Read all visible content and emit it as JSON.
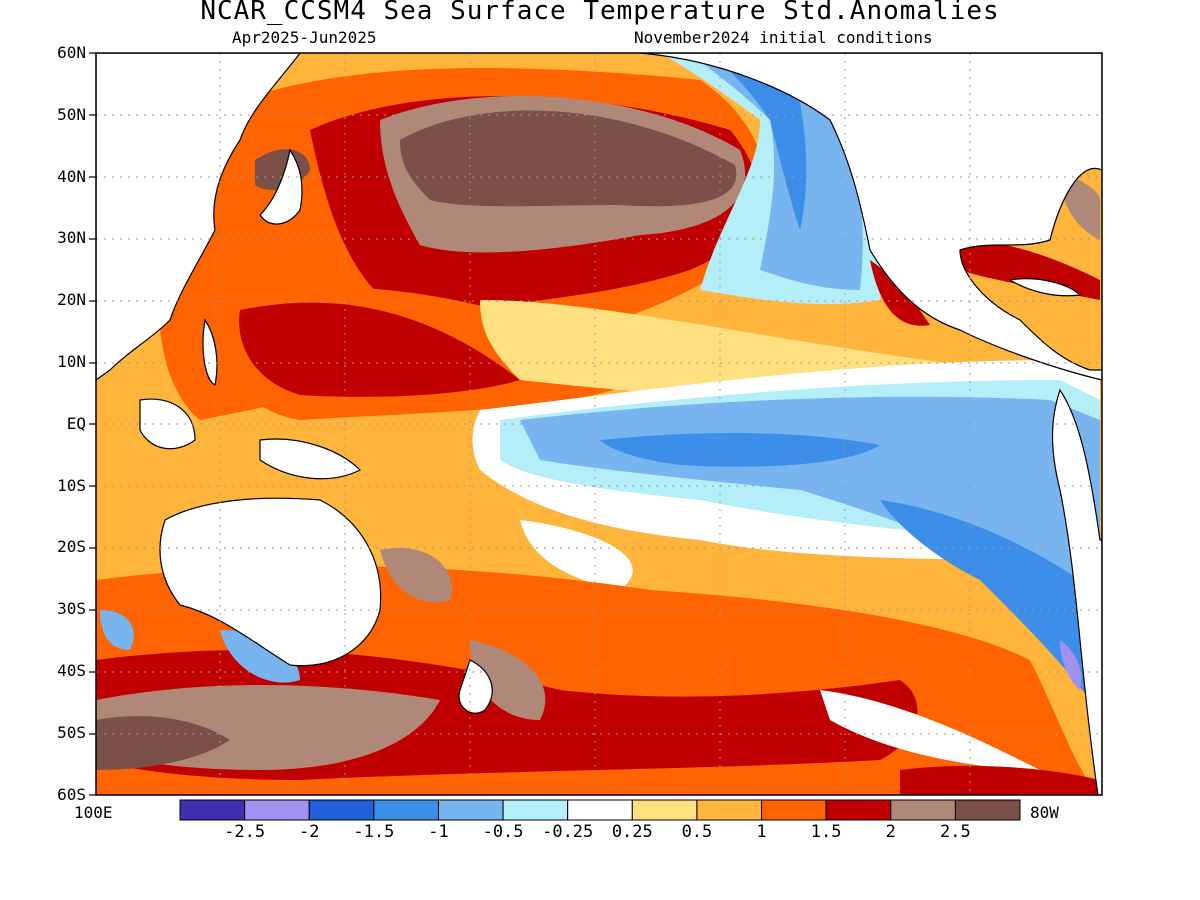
{
  "title": "NCAR_CCSM4 Sea Surface Temperature Std.Anomalies",
  "subtitle_left": "Apr2025-Jun2025",
  "subtitle_right": "November2024 initial conditions",
  "lat_labels": [
    "60N",
    "50N",
    "40N",
    "30N",
    "20N",
    "10N",
    "EQ",
    "10S",
    "20S",
    "30S",
    "40S",
    "50S",
    "60S"
  ],
  "lon_left": "100E",
  "lon_right": "80W",
  "colorbar": {
    "labels": [
      "-2.5",
      "-2",
      "-1.5",
      "-1",
      "-0.5",
      "-0.25",
      "0.25",
      "0.5",
      "1",
      "1.5",
      "2",
      "2.5"
    ],
    "colors": [
      "#4030b0",
      "#a090f0",
      "#2060d8",
      "#3c8ee8",
      "#78b4f0",
      "#b4eef8",
      "#ffffff",
      "#ffe080",
      "#ffb43c",
      "#ff6400",
      "#c00000",
      "#b08878",
      "#7a5048"
    ]
  },
  "map": {
    "map_name": "Pacific Ocean SST standardized anomaly map",
    "projection_extent": "100E-80W, 60S-60N"
  }
}
